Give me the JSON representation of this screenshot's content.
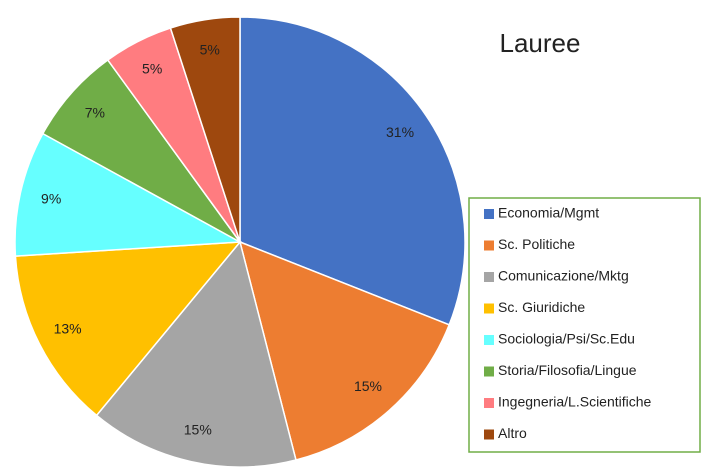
{
  "chart_data": {
    "type": "pie",
    "title": "Lauree",
    "categories": [
      "Economia/Mgmt",
      "Sc. Politiche",
      "Comunicazione/Mktg",
      "Sc. Giuridiche",
      "Sociologia/Psi/Sc.Edu",
      "Storia/Filosofia/Lingue",
      "Ingegneria/L.Scientifiche",
      "Altro"
    ],
    "values": [
      31,
      15,
      15,
      13,
      9,
      7,
      5,
      5
    ],
    "value_labels": [
      "31%",
      "15%",
      "15%",
      "13%",
      "9%",
      "7%",
      "5%",
      "5%"
    ],
    "colors": [
      "#4472c4",
      "#ed7d31",
      "#a5a5a5",
      "#ffc000",
      "#66ffff",
      "#70ad47",
      "#ff7c80",
      "#9e480e"
    ]
  }
}
